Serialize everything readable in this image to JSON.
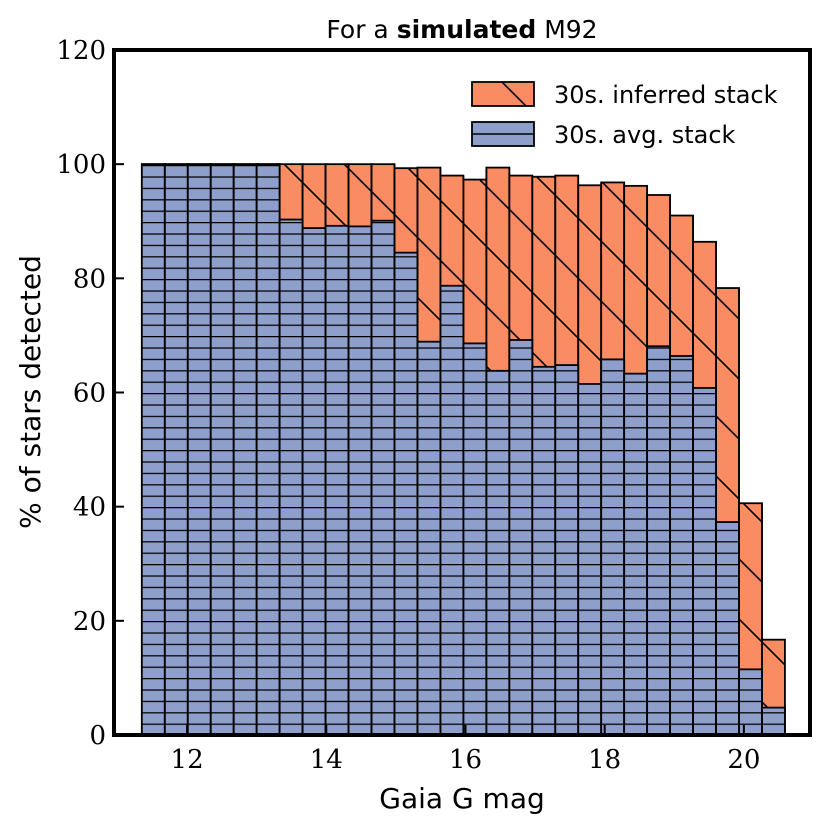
{
  "chart_data": {
    "type": "bar",
    "title": {
      "prefix": "For a ",
      "emphasis": "simulated",
      "suffix": " M92"
    },
    "xlabel": "Gaia G mag",
    "ylabel": "% of stars detected",
    "xlim": [
      10.95,
      20.95
    ],
    "ylim": [
      0,
      120
    ],
    "xticks": [
      12,
      14,
      16,
      18,
      20
    ],
    "yticks": [
      0,
      20,
      40,
      60,
      80,
      100,
      120
    ],
    "bin_edges": [
      11.35,
      11.68,
      12.01,
      12.34,
      12.67,
      13.0,
      13.33,
      13.66,
      13.99,
      14.32,
      14.65,
      14.98,
      15.31,
      15.64,
      15.97,
      16.3,
      16.63,
      16.96,
      17.29,
      17.62,
      17.95,
      18.28,
      18.61,
      18.94,
      19.27,
      19.6,
      19.93,
      20.26,
      20.59
    ],
    "legend_position": "top-right",
    "series": [
      {
        "name": "30s. inferred stack",
        "color": "#F98C62",
        "hatch": "diagonal",
        "values": [
          100,
          100,
          100,
          100,
          100,
          100,
          100,
          100,
          100,
          100,
          100,
          99.3,
          99.4,
          98.0,
          97.3,
          99.4,
          98.0,
          97.8,
          98.0,
          96.3,
          96.8,
          96.2,
          94.6,
          91.0,
          86.4,
          78.3,
          40.6,
          16.7
        ]
      },
      {
        "name": "30s. avg. stack",
        "color": "#8E9FCB",
        "hatch": "horizontal",
        "values": [
          100,
          100,
          100,
          100,
          100,
          100,
          90.3,
          88.8,
          89.2,
          89.1,
          90.1,
          84.5,
          68.9,
          78.7,
          68.6,
          63.8,
          69.2,
          64.5,
          64.8,
          61.5,
          65.8,
          63.3,
          68.1,
          66.4,
          60.8,
          37.3,
          11.5,
          4.8
        ]
      }
    ]
  }
}
